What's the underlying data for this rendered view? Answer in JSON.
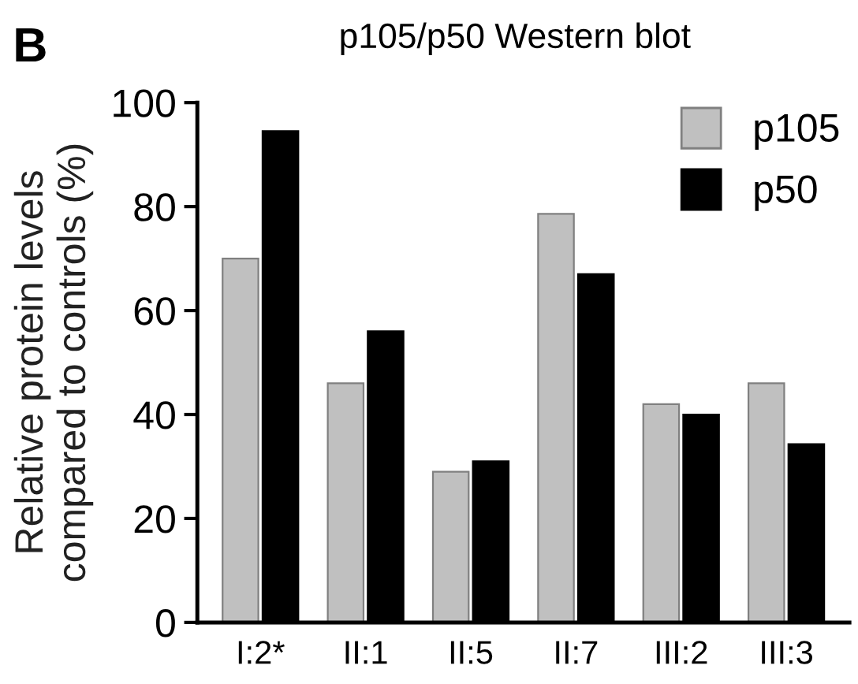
{
  "chart_data": {
    "type": "bar",
    "title": "p105/p50 Western blot",
    "ylabel": "Relative protein levels\ncompared to controls (%)",
    "annotations": [
      "B"
    ],
    "categories": [
      "I:2*",
      "II:1",
      "II:5",
      "II:7",
      "III:2",
      "III:3"
    ],
    "series": [
      {
        "name": "p105",
        "color": "#c0c0c0",
        "values": [
          70,
          46,
          29,
          78.6,
          42,
          46
        ]
      },
      {
        "name": "p50",
        "color": "#000000",
        "values": [
          94.5,
          56,
          31,
          67,
          40,
          34.3
        ]
      }
    ],
    "ylim": [
      0,
      100
    ],
    "yticks": [
      0,
      20,
      40,
      60,
      80,
      100
    ],
    "grid": false,
    "legend": "top right"
  }
}
